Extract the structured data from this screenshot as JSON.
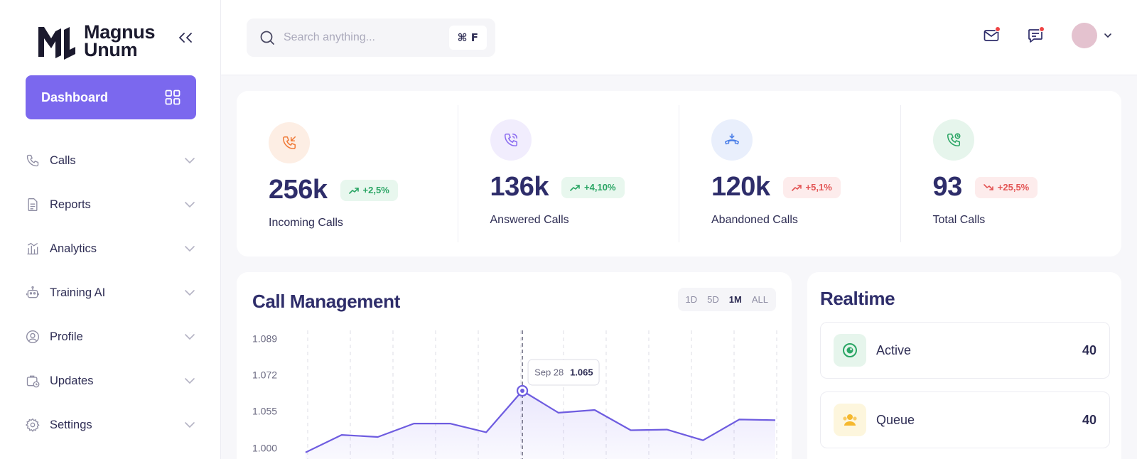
{
  "brand": {
    "name_line1": "Magnus",
    "name_line2": "Unum"
  },
  "sidebar": {
    "dashboard_label": "Dashboard",
    "items": [
      {
        "label": "Calls",
        "icon": "phone-icon"
      },
      {
        "label": "Reports",
        "icon": "document-icon"
      },
      {
        "label": "Analytics",
        "icon": "analytics-icon"
      },
      {
        "label": "Training AI",
        "icon": "robot-icon"
      },
      {
        "label": "Profile",
        "icon": "user-circle-icon"
      },
      {
        "label": "Updates",
        "icon": "updates-icon"
      },
      {
        "label": "Settings",
        "icon": "gear-icon"
      }
    ]
  },
  "search": {
    "placeholder": "Search anything...",
    "shortcut": "⌘ F"
  },
  "stats": [
    {
      "value": "256k",
      "change": "+2,5%",
      "trend": "up",
      "label": "Incoming Calls",
      "color": "#f07c3a",
      "bg": "#fdeee4"
    },
    {
      "value": "136k",
      "change": "+4,10%",
      "trend": "up",
      "label": "Answered Calls",
      "color": "#8b6cf0",
      "bg": "#f1edfd"
    },
    {
      "value": "120k",
      "change": "+5,1%",
      "trend": "down",
      "label": "Abandoned Calls",
      "color": "#4a7ee8",
      "bg": "#e9effc"
    },
    {
      "value": "93",
      "change": "+25,5%",
      "trend": "down",
      "label": "Total Calls",
      "color": "#2aa564",
      "bg": "#e6f5ec"
    }
  ],
  "call_management": {
    "title": "Call Management",
    "ranges": [
      "1D",
      "5D",
      "1M",
      "ALL"
    ],
    "active_range": "1M",
    "tooltip": {
      "date": "Sep 28",
      "value": "1.065"
    }
  },
  "chart_data": {
    "type": "area",
    "yticks": [
      "1.089",
      "1.072",
      "1.055",
      "1.000"
    ],
    "ylim": [
      0.99,
      1.089
    ],
    "series": [
      {
        "values": [
          0.995,
          1.021,
          1.018,
          1.038,
          1.038,
          1.025,
          1.065,
          1.054,
          1.056,
          1.028,
          1.029,
          1.013,
          1.044,
          1.043
        ]
      }
    ],
    "highlight_index": 6,
    "color": "#6e5ce0"
  },
  "realtime": {
    "title": "Realtime",
    "items": [
      {
        "label": "Active",
        "count": "40",
        "icon": "eye-icon",
        "color": "#2aa564",
        "bg": "#e6f5ec"
      },
      {
        "label": "Queue",
        "count": "40",
        "icon": "users-icon",
        "color": "#f5b82e",
        "bg": "#fdf6dd"
      }
    ]
  }
}
